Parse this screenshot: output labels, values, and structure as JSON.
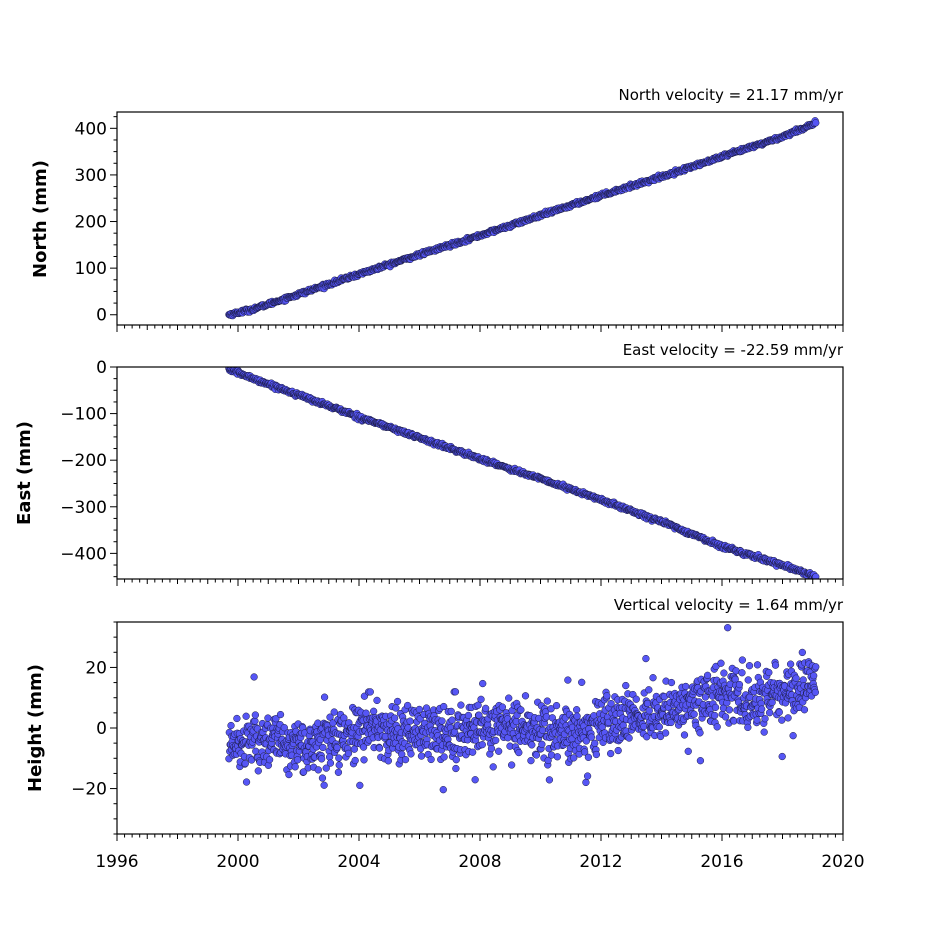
{
  "chart_data": [
    {
      "type": "scatter",
      "title": "North velocity = 21.17 mm/yr",
      "ylabel": "North (mm)",
      "ylim": [
        -22,
        435
      ],
      "yticks": [
        0,
        100,
        200,
        300,
        400
      ],
      "xlim": [
        1996,
        2020
      ],
      "grid": false,
      "series": [
        {
          "x": [
            1999.7,
            2000.5,
            2002,
            2004,
            2006,
            2008,
            2010,
            2012,
            2014,
            2016,
            2018,
            2019.1
          ],
          "y": [
            0,
            12,
            44,
            87,
            129,
            170,
            213,
            256,
            296,
            339,
            382,
            412
          ]
        }
      ]
    },
    {
      "type": "scatter",
      "title": "East velocity = -22.59 mm/yr",
      "ylabel": "East (mm)",
      "ylim": [
        -455,
        0
      ],
      "yticks": [
        0,
        -100,
        -200,
        -300,
        -400
      ],
      "xlim": [
        1996,
        2020
      ],
      "grid": false,
      "series": [
        {
          "x": [
            1999.7,
            2000.3,
            2002,
            2004,
            2006,
            2008,
            2010,
            2012,
            2014,
            2016,
            2018,
            2019.1
          ],
          "y": [
            -5,
            -20,
            -60,
            -107,
            -152,
            -197,
            -240,
            -285,
            -332,
            -385,
            -425,
            -450
          ]
        }
      ]
    },
    {
      "type": "scatter",
      "title": "Vertical velocity = 1.64 mm/yr",
      "ylabel": "Height (mm)",
      "ylim": [
        -35,
        35
      ],
      "yticks": [
        -20,
        0,
        20
      ],
      "xlim": [
        1996,
        2020
      ],
      "xticks": [
        1996,
        2000,
        2004,
        2008,
        2012,
        2016,
        2020
      ],
      "grid": false,
      "series": [
        {
          "x": [
            1999.7,
            2000.5,
            2002,
            2003,
            2004,
            2005,
            2006,
            2007,
            2008,
            2009,
            2010,
            2011,
            2012,
            2013,
            2014,
            2015,
            2016,
            2017,
            2018,
            2019.1
          ],
          "y": [
            -5,
            -4,
            -6,
            -5,
            0,
            -1,
            -2,
            -1,
            0,
            0,
            -1,
            -3,
            1,
            4,
            5,
            8,
            12,
            9,
            13,
            15
          ]
        }
      ]
    }
  ],
  "style": {
    "marker_fill": "#5656f5",
    "marker_edge": "#1a1a40",
    "axis_color": "#000000"
  }
}
